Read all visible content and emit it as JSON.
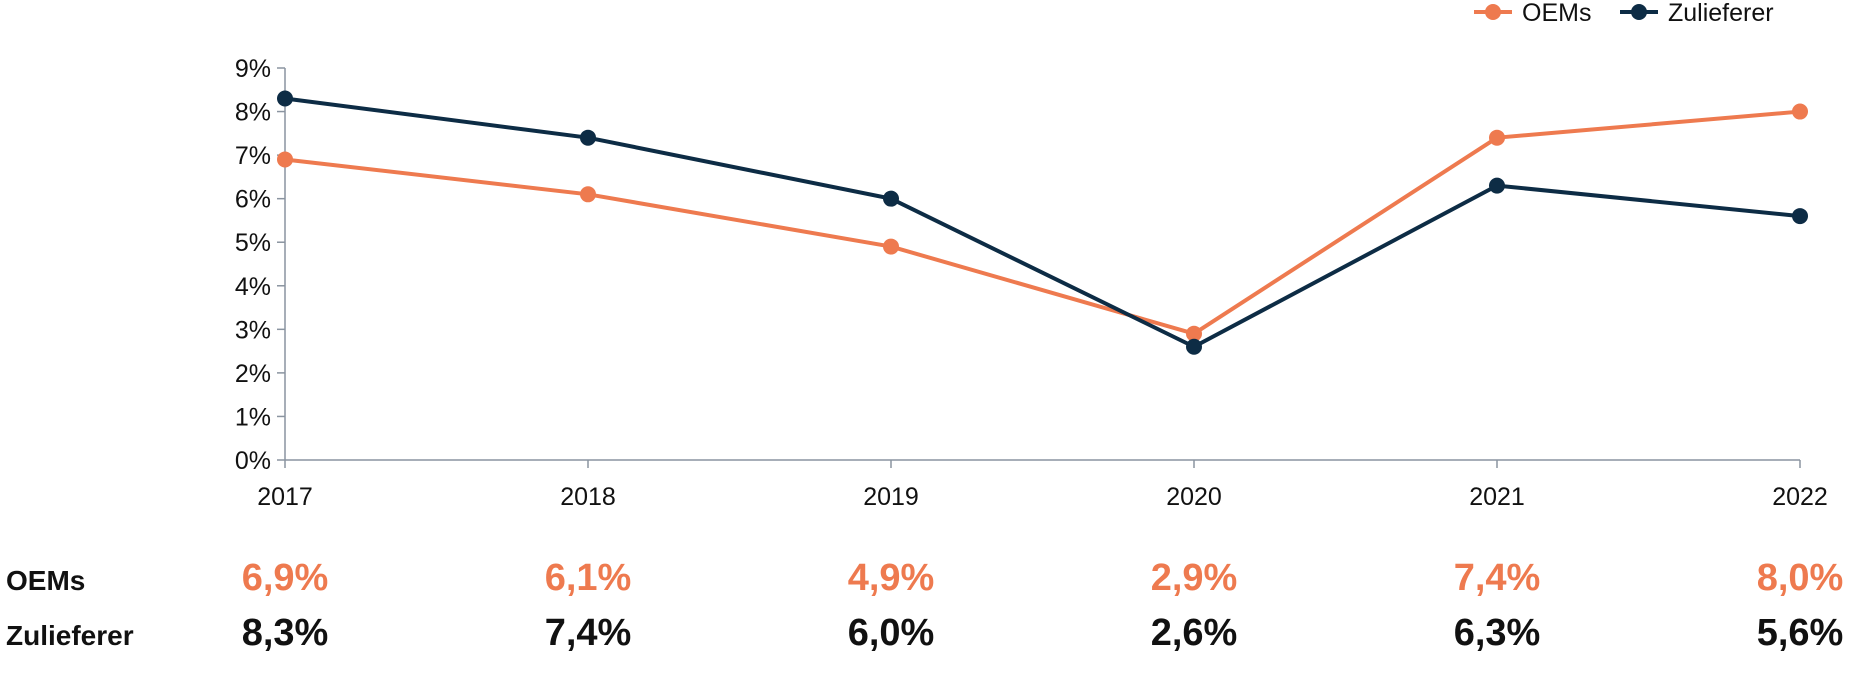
{
  "chart_data": {
    "type": "line",
    "categories": [
      "2017",
      "2018",
      "2019",
      "2020",
      "2021",
      "2022"
    ],
    "series": [
      {
        "name": "OEMs",
        "color": "#EE7A4F",
        "values": [
          6.9,
          6.1,
          4.9,
          2.9,
          7.4,
          8.0
        ]
      },
      {
        "name": "Zulieferer",
        "color": "#0D2C45",
        "values": [
          8.3,
          7.4,
          6.0,
          2.6,
          6.3,
          5.6
        ]
      }
    ],
    "ylim": [
      0,
      9
    ],
    "y_ticks": [
      "0%",
      "1%",
      "2%",
      "3%",
      "4%",
      "5%",
      "6%",
      "7%",
      "8%",
      "9%"
    ],
    "grid": false,
    "legend_position": "top-right",
    "axis_color": "#8a94a0"
  },
  "data_table": {
    "rows": [
      {
        "label": "OEMs",
        "color": "#EE7A4F",
        "values": [
          "6,9%",
          "6,1%",
          "4,9%",
          "2,9%",
          "7,4%",
          "8,0%"
        ]
      },
      {
        "label": "Zulieferer",
        "color": "#111111",
        "values": [
          "8,3%",
          "7,4%",
          "6,0%",
          "2,6%",
          "6,3%",
          "5,6%"
        ]
      }
    ]
  }
}
